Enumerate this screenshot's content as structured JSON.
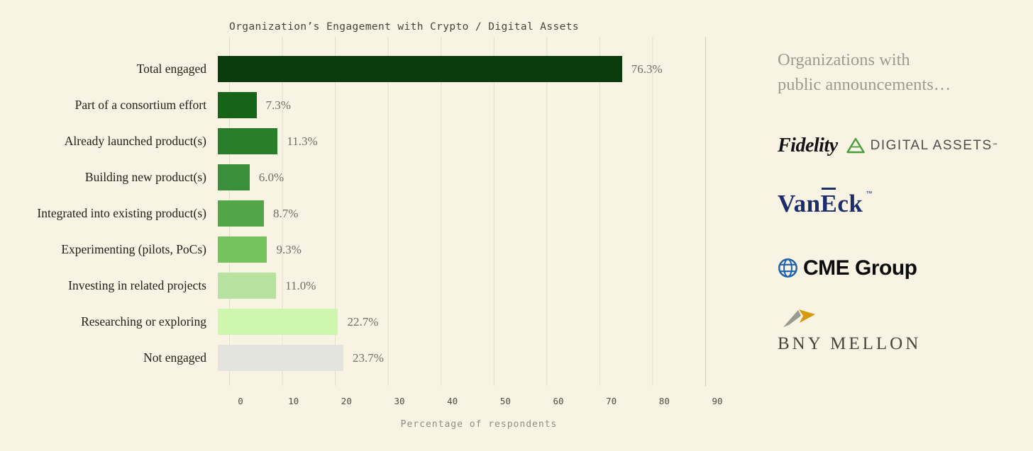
{
  "chart_data": {
    "type": "bar",
    "orientation": "horizontal",
    "title": "Organization’s Engagement with Crypto / Digital Assets",
    "xlabel": "Percentage of respondents",
    "xlim": [
      0,
      90
    ],
    "xticks": [
      0,
      10,
      20,
      30,
      40,
      50,
      60,
      70,
      80,
      90
    ],
    "grid": true,
    "legend": false,
    "categories": [
      "Total engaged",
      "Part of a consortium effort",
      "Already launched product(s)",
      "Building new product(s)",
      "Integrated into existing product(s)",
      "Experimenting (pilots, PoCs)",
      "Investing in related projects",
      "Researching or exploring",
      "Not engaged"
    ],
    "values": [
      76.3,
      7.3,
      11.3,
      6.0,
      8.7,
      9.3,
      11.0,
      22.7,
      23.7
    ],
    "value_labels": [
      "76.3%",
      "7.3%",
      "11.3%",
      "6.0%",
      "8.7%",
      "9.3%",
      "11.0%",
      "22.7%",
      "23.7%"
    ],
    "bar_colors": [
      "#0a3b0c",
      "#156417",
      "#2a7d2a",
      "#3c8f3a",
      "#52a648",
      "#74c35c",
      "#b7e29f",
      "#cdf7ad",
      "#e4e4df"
    ]
  },
  "sidebar": {
    "heading_line1": "Organizations with",
    "heading_line2": "public announcements…",
    "logos": {
      "fidelity": {
        "word": "Fidelity",
        "suffix": "DIGITAL ASSETS",
        "sm": "℠"
      },
      "vaneck": {
        "part1": "Van",
        "part2": "E",
        "part3": "ck",
        "tm": "™"
      },
      "cme": {
        "text": "CME Group"
      },
      "bny": {
        "text": "BNY MELLON"
      }
    }
  },
  "colors": {
    "background": "#f8f3e3",
    "title_text": "#45453a",
    "category_text": "#21211a",
    "value_text": "#6f6f64",
    "heading_text": "#9c9c8c",
    "vaneck_navy": "#1b2e6b",
    "cme_blue": "#1f63ad",
    "fidelity_green": "#4a9b3f",
    "bny_gold": "#d9990f",
    "bny_gray": "#9a9a90"
  }
}
